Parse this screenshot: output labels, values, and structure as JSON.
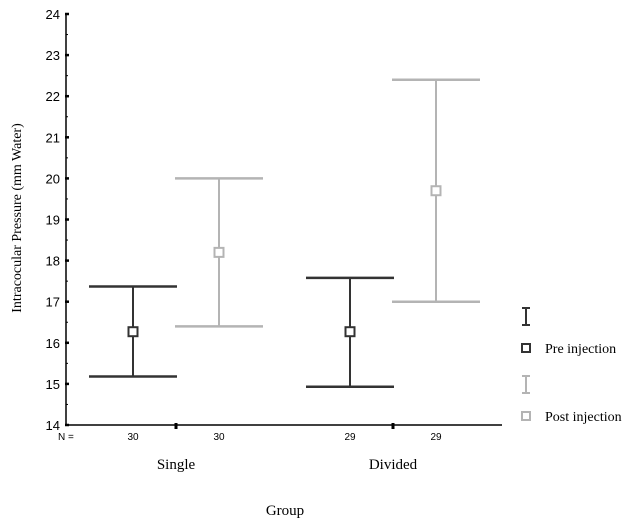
{
  "chart_data": {
    "type": "errorbar",
    "ylabel": "Intracocular Pressure (mm Water)",
    "xlabel": "Group",
    "n_label": "N =",
    "ylim": [
      14,
      24
    ],
    "yticks": [
      "14",
      "15",
      "16",
      "17",
      "18",
      "19",
      "20",
      "21",
      "22",
      "23",
      "24"
    ],
    "categories": [
      "Single",
      "Divided"
    ],
    "series": [
      {
        "name": "Pre injection",
        "color": "#333333",
        "n": [
          "30",
          "29"
        ],
        "mean": [
          16.27,
          16.27
        ],
        "lower": [
          15.18,
          14.93
        ],
        "upper": [
          17.37,
          17.58
        ]
      },
      {
        "name": "Post injection",
        "color": "#b4b4b4",
        "n": [
          "30",
          "29"
        ],
        "mean": [
          18.2,
          19.7
        ],
        "lower": [
          16.4,
          17.0
        ],
        "upper": [
          20.0,
          22.4
        ]
      }
    ],
    "legend_position": "right"
  }
}
